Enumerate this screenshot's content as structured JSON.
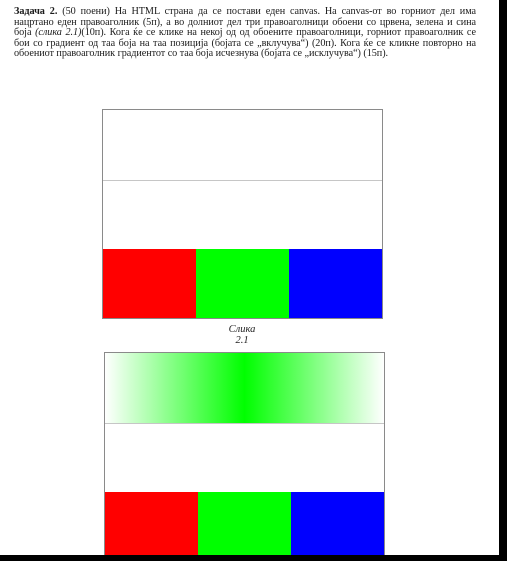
{
  "task": {
    "title": "Задача 2.",
    "points": "(50 поени)",
    "text_1": "На HTML страна да се постави еден canvas. На canvas-от во горниот дел има нацртано еден правоаголник (5п), а во долниот дел три правоаголници обоени со црвена, зелена и сина боја",
    "figure_ref": "(слика 2.1)",
    "text_2": "(10п). Кога ќе се клике на некој од од обоените правоаголници, горниот правоаголник се бои со градиент од таа боја на таа позиција (бојата се „вклучува“) (20п). Кога ќе се кликне повторно на обоениот правоаголник градиентот со таа боја исчезнува (бојата се „исклучува“) (15п)."
  },
  "figure": {
    "caption": "Слика 2.1"
  },
  "colors": {
    "red": "#ff0000",
    "green": "#00ff00",
    "blue": "#0000ff",
    "frame": "#8a8a8a"
  }
}
